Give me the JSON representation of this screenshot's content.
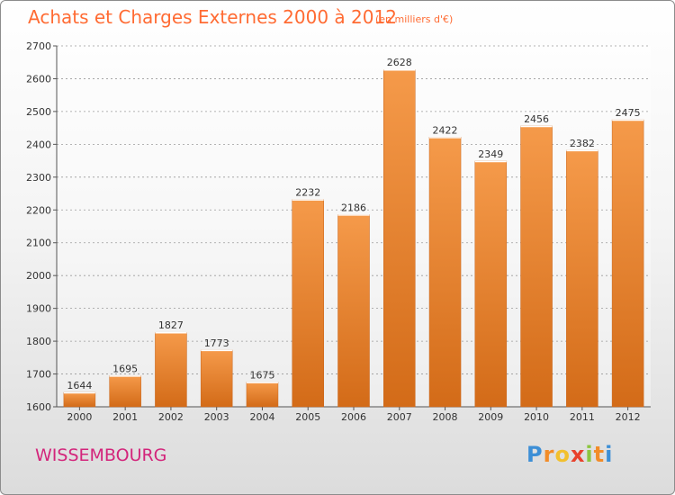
{
  "chart_data": {
    "type": "bar",
    "title": "Achats et Charges Externes 2000 à 2012",
    "subtitle": "(en milliers d'€)",
    "categories": [
      "2000",
      "2001",
      "2002",
      "2003",
      "2004",
      "2005",
      "2006",
      "2007",
      "2008",
      "2009",
      "2010",
      "2011",
      "2012"
    ],
    "values": [
      1644,
      1695,
      1827,
      1773,
      1675,
      2232,
      2186,
      2628,
      2422,
      2349,
      2456,
      2382,
      2475
    ],
    "ylim": [
      1600,
      2700
    ],
    "yticks": [
      1600,
      1700,
      1800,
      1900,
      2000,
      2100,
      2200,
      2300,
      2400,
      2500,
      2600,
      2700
    ],
    "grid": true,
    "bar_color": "#f59a4a",
    "bar_color_dark": "#d36b18"
  },
  "commune": "WISSEMBOURG",
  "logo": {
    "letters": [
      "P",
      "r",
      "o",
      "x",
      "i",
      "t",
      "i"
    ],
    "colors": [
      "#3d8fd6",
      "#f28c28",
      "#f2c02e",
      "#e8412c",
      "#8cc63f",
      "#f28c28",
      "#3d8fd6"
    ]
  }
}
